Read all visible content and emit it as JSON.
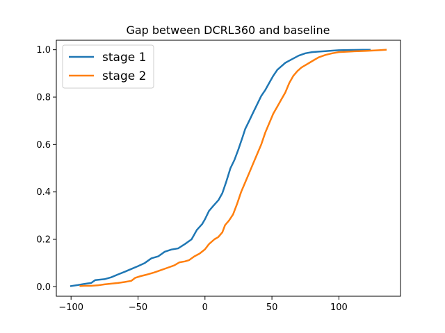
{
  "chart_data": {
    "type": "line",
    "title": "Gap between DCRL360 and baseline",
    "xlabel": "",
    "ylabel": "",
    "xlim": [
      -111,
      146
    ],
    "ylim": [
      -0.04,
      1.04
    ],
    "xticks": [
      -100,
      -50,
      0,
      50,
      100
    ],
    "yticks": [
      0.0,
      0.2,
      0.4,
      0.6,
      0.8,
      1.0
    ],
    "xtick_labels": [
      "−100",
      "−50",
      "0",
      "50",
      "100"
    ],
    "ytick_labels": [
      "0.0",
      "0.2",
      "0.4",
      "0.6",
      "0.8",
      "1.0"
    ],
    "grid": false,
    "legend_position": "upper-left",
    "series": [
      {
        "name": "stage 1",
        "color": "#1f77b4",
        "points": [
          [
            -100,
            0.003
          ],
          [
            -95,
            0.007
          ],
          [
            -90,
            0.012
          ],
          [
            -85,
            0.016
          ],
          [
            -82,
            0.028
          ],
          [
            -75,
            0.032
          ],
          [
            -70,
            0.04
          ],
          [
            -65,
            0.052
          ],
          [
            -60,
            0.063
          ],
          [
            -55,
            0.075
          ],
          [
            -50,
            0.087
          ],
          [
            -45,
            0.1
          ],
          [
            -40,
            0.12
          ],
          [
            -35,
            0.128
          ],
          [
            -30,
            0.148
          ],
          [
            -25,
            0.157
          ],
          [
            -20,
            0.162
          ],
          [
            -15,
            0.18
          ],
          [
            -10,
            0.2
          ],
          [
            -6,
            0.24
          ],
          [
            -2,
            0.265
          ],
          [
            0,
            0.285
          ],
          [
            3,
            0.32
          ],
          [
            6,
            0.34
          ],
          [
            10,
            0.365
          ],
          [
            13,
            0.395
          ],
          [
            16,
            0.445
          ],
          [
            19,
            0.5
          ],
          [
            22,
            0.535
          ],
          [
            25,
            0.58
          ],
          [
            28,
            0.63
          ],
          [
            30,
            0.665
          ],
          [
            33,
            0.7
          ],
          [
            36,
            0.735
          ],
          [
            39,
            0.77
          ],
          [
            42,
            0.805
          ],
          [
            45,
            0.83
          ],
          [
            48,
            0.86
          ],
          [
            51,
            0.89
          ],
          [
            54,
            0.915
          ],
          [
            57,
            0.93
          ],
          [
            60,
            0.945
          ],
          [
            65,
            0.96
          ],
          [
            70,
            0.975
          ],
          [
            75,
            0.985
          ],
          [
            80,
            0.99
          ],
          [
            85,
            0.992
          ],
          [
            90,
            0.994
          ],
          [
            95,
            0.996
          ],
          [
            100,
            0.998
          ],
          [
            110,
            0.999
          ],
          [
            118,
            1.0
          ],
          [
            123,
            1.0
          ]
        ]
      },
      {
        "name": "stage 2",
        "color": "#ff7f0e",
        "points": [
          [
            -93,
            0.003
          ],
          [
            -90,
            0.004
          ],
          [
            -85,
            0.004
          ],
          [
            -80,
            0.006
          ],
          [
            -75,
            0.01
          ],
          [
            -70,
            0.013
          ],
          [
            -65,
            0.016
          ],
          [
            -60,
            0.02
          ],
          [
            -55,
            0.025
          ],
          [
            -52,
            0.038
          ],
          [
            -48,
            0.045
          ],
          [
            -43,
            0.052
          ],
          [
            -38,
            0.06
          ],
          [
            -33,
            0.07
          ],
          [
            -28,
            0.08
          ],
          [
            -23,
            0.09
          ],
          [
            -19,
            0.103
          ],
          [
            -15,
            0.107
          ],
          [
            -12,
            0.112
          ],
          [
            -8,
            0.128
          ],
          [
            -4,
            0.14
          ],
          [
            0,
            0.158
          ],
          [
            3,
            0.18
          ],
          [
            7,
            0.2
          ],
          [
            10,
            0.21
          ],
          [
            13,
            0.23
          ],
          [
            15,
            0.26
          ],
          [
            18,
            0.28
          ],
          [
            21,
            0.305
          ],
          [
            24,
            0.35
          ],
          [
            27,
            0.4
          ],
          [
            30,
            0.44
          ],
          [
            33,
            0.48
          ],
          [
            36,
            0.52
          ],
          [
            39,
            0.56
          ],
          [
            42,
            0.6
          ],
          [
            45,
            0.65
          ],
          [
            48,
            0.69
          ],
          [
            51,
            0.73
          ],
          [
            54,
            0.76
          ],
          [
            57,
            0.79
          ],
          [
            60,
            0.82
          ],
          [
            63,
            0.86
          ],
          [
            66,
            0.89
          ],
          [
            69,
            0.91
          ],
          [
            72,
            0.925
          ],
          [
            75,
            0.935
          ],
          [
            78,
            0.945
          ],
          [
            81,
            0.955
          ],
          [
            85,
            0.968
          ],
          [
            90,
            0.978
          ],
          [
            95,
            0.985
          ],
          [
            100,
            0.99
          ],
          [
            110,
            0.993
          ],
          [
            120,
            0.995
          ],
          [
            130,
            0.998
          ],
          [
            135,
            1.0
          ]
        ]
      }
    ]
  }
}
